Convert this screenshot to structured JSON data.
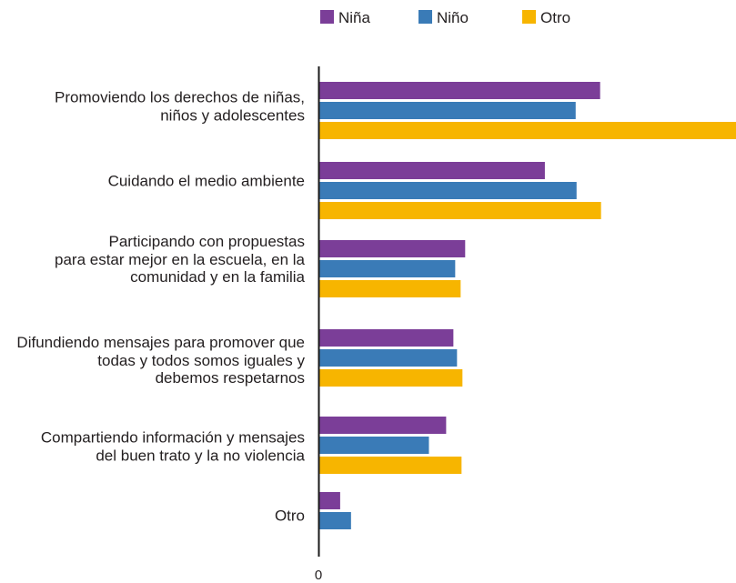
{
  "chart_data": {
    "type": "bar",
    "orientation": "horizontal",
    "categories": [
      "Promoviendo los derechos de niñas,\nniños y adolescentes",
      "Cuidando el medio ambiente",
      "Participando con propuestas\npara estar mejor en la escuela, en la\ncomunidad y en la familia",
      "Difundiendo mensajes para promover que\ntodas y todos somos iguales y\ndebemos respetarnos",
      "Compartiendo información y mensajes\ndel buen trato y la no violencia",
      "Otro"
    ],
    "series": [
      {
        "name": "Niña",
        "color": "#7b3e98",
        "values": [
          31.0,
          24.9,
          16.1,
          14.8,
          14.0,
          2.3
        ]
      },
      {
        "name": "Niño",
        "color": "#3a7bb7",
        "values": [
          28.3,
          28.4,
          15.0,
          15.2,
          12.1,
          3.5
        ]
      },
      {
        "name": "Otro",
        "color": "#f7b500",
        "values": [
          46.0,
          31.1,
          15.6,
          15.8,
          15.7,
          null
        ]
      }
    ],
    "x_ticks": [
      {
        "value": 0,
        "label": "0"
      }
    ],
    "xlim": [
      0,
      46
    ],
    "grid": false,
    "legend": "top"
  }
}
